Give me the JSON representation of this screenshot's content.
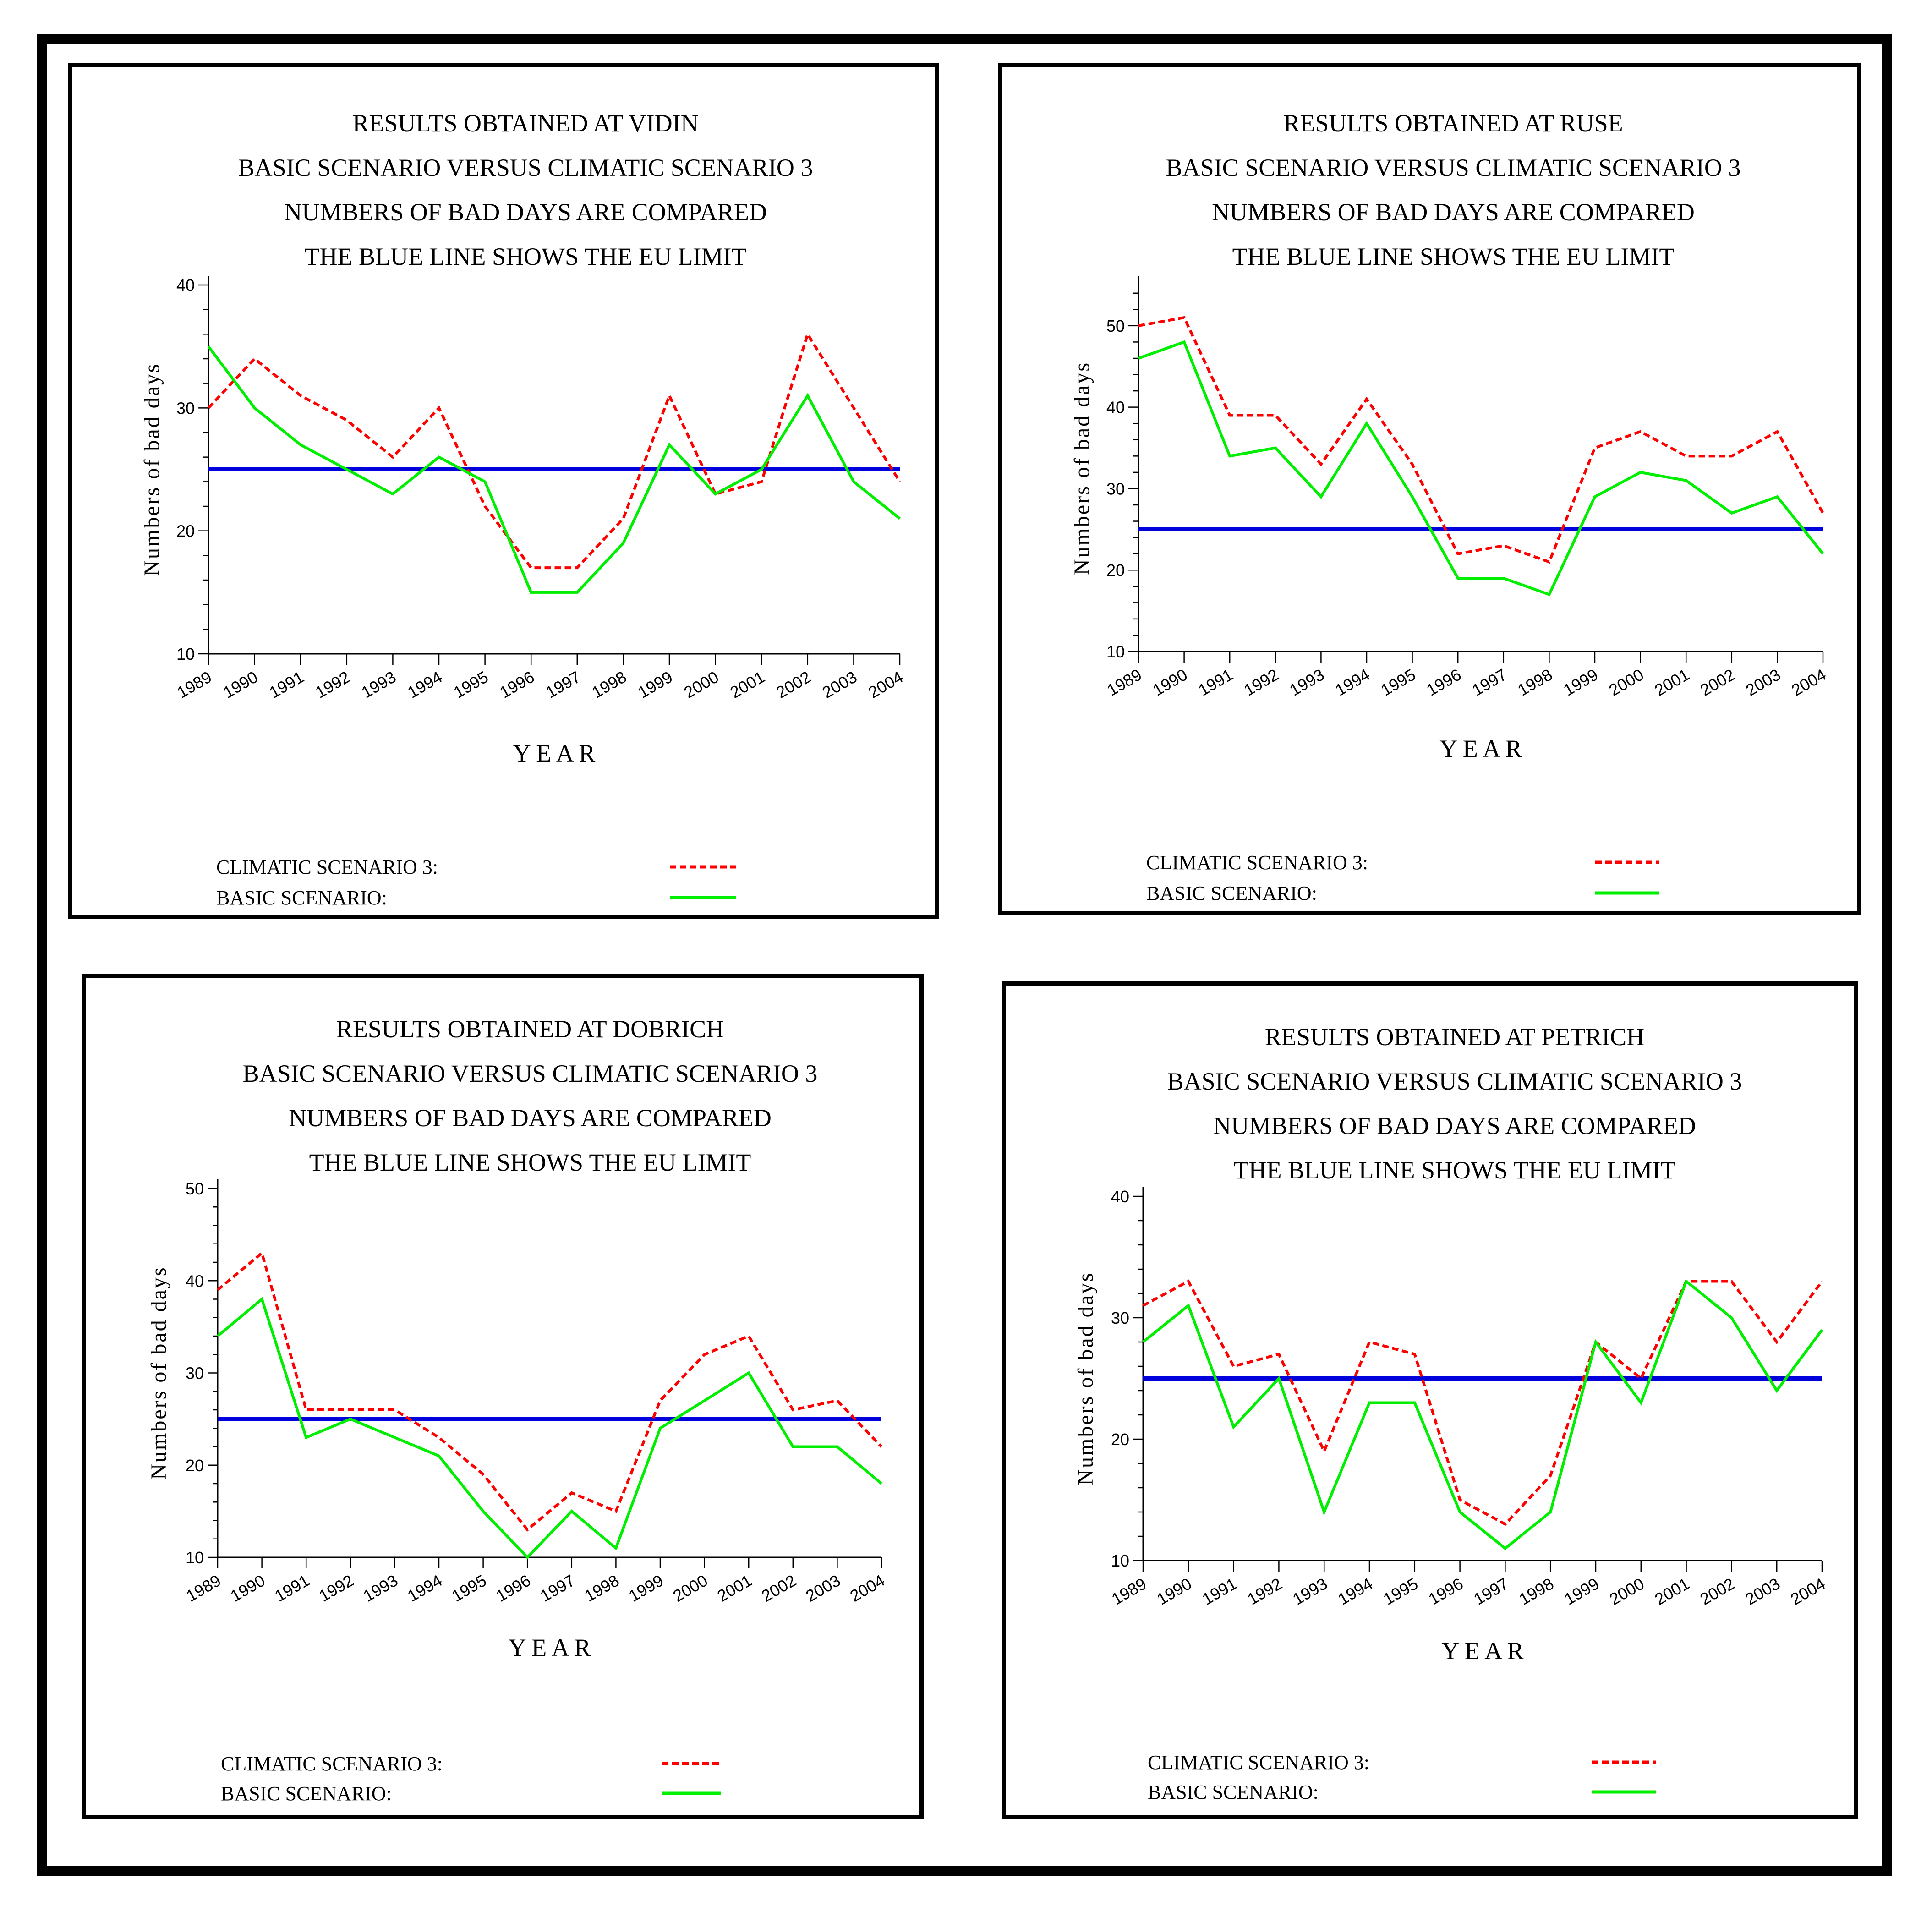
{
  "colors": {
    "climatic": "#ff0000",
    "basic": "#00ee00",
    "limit": "#0000dd",
    "frame": "#000000"
  },
  "chart_data": [
    {
      "type": "line",
      "title": [
        "RESULTS OBTAINED AT VIDIN",
        "BASIC SCENARIO VERSUS CLIMATIC SCENARIO 3",
        "NUMBERS OF BAD DAYS ARE COMPARED",
        "THE BLUE LINE SHOWS THE EU LIMIT"
      ],
      "xlabel": "Y E A R",
      "ylabel": "Numbers of bad days",
      "x": [
        "1989",
        "1990",
        "1991",
        "1992",
        "1993",
        "1994",
        "1995",
        "1996",
        "1997",
        "1998",
        "1999",
        "2000",
        "2001",
        "2002",
        "2003",
        "2004"
      ],
      "ylim": [
        10,
        40
      ],
      "yticks": [
        10,
        20,
        30,
        40
      ],
      "eu_limit": 25,
      "series": [
        {
          "name": "CLIMATIC SCENARIO 3:",
          "style": "dashed",
          "values": [
            30,
            34,
            31,
            29,
            26,
            30,
            22,
            17,
            17,
            21,
            31,
            23,
            24,
            36,
            30,
            24
          ]
        },
        {
          "name": "BASIC SCENARIO:",
          "style": "solid",
          "values": [
            35,
            30,
            27,
            25,
            23,
            26,
            24,
            15,
            15,
            19,
            27,
            23,
            25,
            31,
            24,
            21
          ]
        }
      ]
    },
    {
      "type": "line",
      "title": [
        "RESULTS OBTAINED AT RUSE",
        "BASIC SCENARIO VERSUS CLIMATIC SCENARIO 3",
        "NUMBERS OF BAD DAYS ARE COMPARED",
        "THE BLUE LINE SHOWS THE EU LIMIT"
      ],
      "xlabel": "Y E A R",
      "ylabel": "Numbers of bad days",
      "x": [
        "1989",
        "1990",
        "1991",
        "1992",
        "1993",
        "1994",
        "1995",
        "1996",
        "1997",
        "1998",
        "1999",
        "2000",
        "2001",
        "2002",
        "2003",
        "2004"
      ],
      "ylim": [
        10,
        55
      ],
      "yticks": [
        10,
        20,
        30,
        40,
        50
      ],
      "eu_limit": 25,
      "series": [
        {
          "name": "CLIMATIC SCENARIO 3:",
          "style": "dashed",
          "values": [
            50,
            51,
            39,
            39,
            33,
            41,
            33,
            22,
            23,
            21,
            35,
            37,
            34,
            34,
            37,
            27
          ]
        },
        {
          "name": "BASIC SCENARIO:",
          "style": "solid",
          "values": [
            46,
            48,
            34,
            35,
            29,
            38,
            29,
            19,
            19,
            17,
            29,
            32,
            31,
            27,
            29,
            22
          ]
        }
      ]
    },
    {
      "type": "line",
      "title": [
        "RESULTS OBTAINED AT DOBRICH",
        "BASIC SCENARIO VERSUS CLIMATIC SCENARIO 3",
        "NUMBERS OF BAD DAYS ARE COMPARED",
        "THE BLUE LINE SHOWS THE EU LIMIT"
      ],
      "xlabel": "Y E A R",
      "ylabel": "Numbers of bad days",
      "x": [
        "1989",
        "1990",
        "1991",
        "1992",
        "1993",
        "1994",
        "1995",
        "1996",
        "1997",
        "1998",
        "1999",
        "2000",
        "2001",
        "2002",
        "2003",
        "2004"
      ],
      "ylim": [
        10,
        50
      ],
      "yticks": [
        10,
        20,
        30,
        40,
        50
      ],
      "eu_limit": 25,
      "series": [
        {
          "name": "CLIMATIC SCENARIO 3:",
          "style": "dashed",
          "values": [
            39,
            43,
            26,
            26,
            26,
            23,
            19,
            13,
            17,
            15,
            27,
            32,
            34,
            26,
            27,
            22
          ]
        },
        {
          "name": "BASIC SCENARIO:",
          "style": "solid",
          "values": [
            34,
            38,
            23,
            25,
            23,
            21,
            15,
            10,
            15,
            11,
            24,
            27,
            30,
            22,
            22,
            18
          ]
        }
      ]
    },
    {
      "type": "line",
      "title": [
        "RESULTS OBTAINED AT PETRICH",
        "BASIC SCENARIO VERSUS CLIMATIC SCENARIO 3",
        "NUMBERS OF BAD DAYS ARE COMPARED",
        "THE BLUE LINE SHOWS THE EU LIMIT"
      ],
      "xlabel": "Y E A R",
      "ylabel": "Numbers of bad days",
      "x": [
        "1989",
        "1990",
        "1991",
        "1992",
        "1993",
        "1994",
        "1995",
        "1996",
        "1997",
        "1998",
        "1999",
        "2000",
        "2001",
        "2002",
        "2003",
        "2004"
      ],
      "ylim": [
        10,
        40
      ],
      "yticks": [
        10,
        20,
        30,
        40
      ],
      "eu_limit": 25,
      "series": [
        {
          "name": "CLIMATIC SCENARIO 3:",
          "style": "dashed",
          "values": [
            31,
            33,
            26,
            27,
            19,
            28,
            27,
            15,
            13,
            17,
            28,
            25,
            33,
            33,
            28,
            33
          ]
        },
        {
          "name": "BASIC SCENARIO:",
          "style": "solid",
          "values": [
            28,
            31,
            21,
            25,
            14,
            23,
            23,
            14,
            11,
            14,
            28,
            23,
            33,
            30,
            24,
            29
          ]
        }
      ]
    }
  ]
}
